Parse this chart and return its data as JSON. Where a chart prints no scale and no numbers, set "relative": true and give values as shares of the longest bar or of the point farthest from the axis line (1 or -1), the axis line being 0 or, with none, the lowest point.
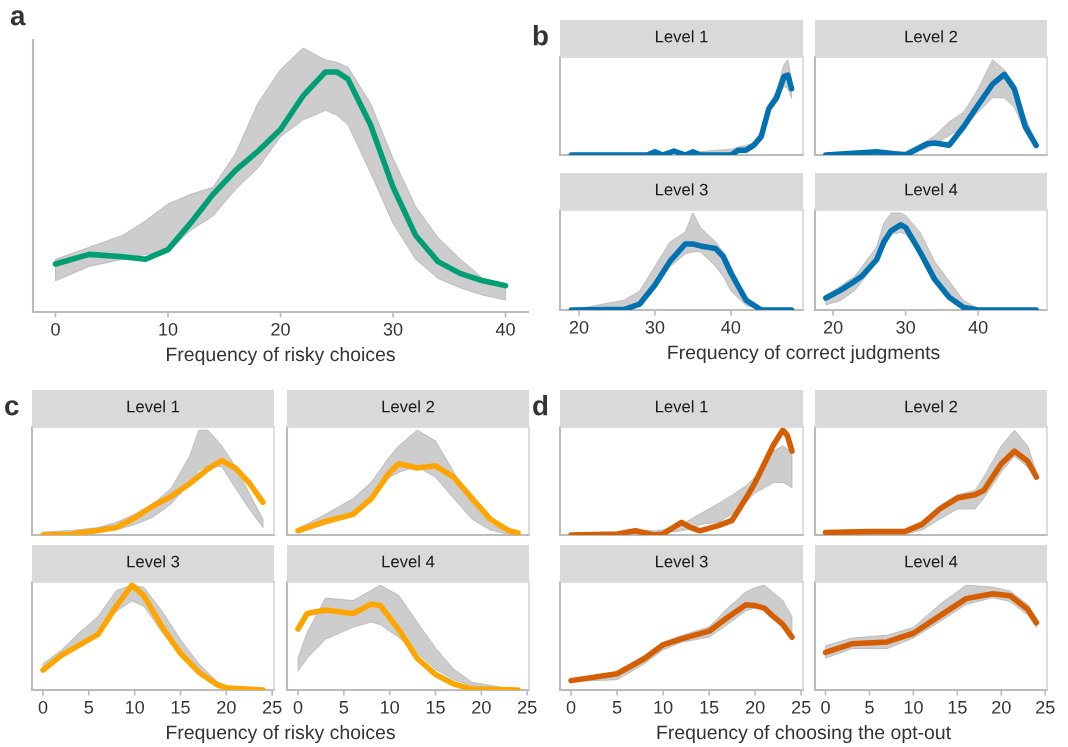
{
  "chart_data": [
    {
      "type": "line",
      "title": "a",
      "xlabel": "Frequency of risky choices",
      "relative": true,
      "tick_labels": "x",
      "xlim": [
        -2,
        42
      ],
      "xticks": [
        0,
        10,
        20,
        30,
        40
      ],
      "x": [
        0,
        3,
        6,
        8,
        10,
        12,
        14,
        16,
        18,
        20,
        22,
        24,
        25,
        26,
        28,
        30,
        32,
        34,
        36,
        38,
        40
      ],
      "series": [
        {
          "color": "#009e73",
          "values": [
            0.2,
            0.24,
            0.23,
            0.22,
            0.26,
            0.37,
            0.49,
            0.59,
            0.67,
            0.76,
            0.9,
            1,
            1,
            0.97,
            0.78,
            0.52,
            0.32,
            0.21,
            0.16,
            0.13,
            0.11
          ],
          "lower": [
            0.13,
            0.19,
            0.22,
            0.24,
            0.25,
            0.34,
            0.4,
            0.51,
            0.6,
            0.73,
            0.8,
            0.84,
            0.82,
            0.78,
            0.58,
            0.37,
            0.22,
            0.14,
            0.1,
            0.07,
            0.05
          ],
          "upper": [
            0.22,
            0.27,
            0.32,
            0.38,
            0.45,
            0.49,
            0.52,
            0.66,
            0.87,
            1.01,
            1.1,
            1.05,
            1.04,
            1.02,
            0.87,
            0.64,
            0.44,
            0.31,
            0.22,
            0.14,
            0.11
          ]
        }
      ]
    },
    {
      "type": "line",
      "title": "b",
      "subtitle": "Level 1",
      "relative": true,
      "tick_labels": false,
      "xlim": [
        17.5,
        49.5
      ],
      "x": [
        19,
        26,
        29,
        30,
        31,
        32.5,
        34,
        35,
        36,
        38,
        40,
        41,
        42,
        43,
        44,
        45,
        46,
        47,
        47.5,
        48
      ],
      "series": [
        {
          "color": "#0072b2",
          "values": [
            0,
            0,
            0,
            0.04,
            0,
            0.05,
            0,
            0.04,
            0,
            0,
            0,
            0.06,
            0.06,
            0.12,
            0.23,
            0.58,
            0.71,
            0.98,
            1,
            0.83
          ],
          "lower": [
            0,
            0,
            0,
            0,
            0,
            0,
            0,
            0,
            0,
            0,
            0,
            0.04,
            0.05,
            0.1,
            0.21,
            0.54,
            0.69,
            0.86,
            0.83,
            0.71
          ],
          "upper": [
            0,
            0,
            0,
            0.04,
            0.02,
            0.05,
            0.02,
            0.04,
            0.04,
            0.06,
            0.07,
            0.1,
            0.12,
            0.15,
            0.3,
            0.63,
            0.8,
            1.13,
            1.19,
            0.95
          ]
        }
      ]
    },
    {
      "type": "line",
      "subtitle": "Level 2",
      "relative": true,
      "tick_labels": false,
      "xlim": [
        17.5,
        49.5
      ],
      "x": [
        19,
        26,
        30,
        33,
        34,
        36,
        38,
        40,
        42,
        43.6,
        45,
        46.5,
        48
      ],
      "series": [
        {
          "color": "#0072b2",
          "values": [
            0,
            0.04,
            0,
            0.14,
            0.15,
            0.12,
            0.35,
            0.62,
            0.88,
            1,
            0.82,
            0.35,
            0.12
          ],
          "lower": [
            0,
            0,
            0,
            0.09,
            0.14,
            0.24,
            0.35,
            0.53,
            0.71,
            0.71,
            0.59,
            0.29,
            0.09
          ],
          "upper": [
            0,
            0.04,
            0.04,
            0.18,
            0.24,
            0.41,
            0.53,
            0.82,
            1.18,
            1.06,
            0.88,
            0.47,
            0.14
          ]
        }
      ]
    },
    {
      "type": "line",
      "subtitle": "Level 3",
      "xlabel": "Frequency of correct judgments",
      "relative": true,
      "tick_labels": "x",
      "xlim": [
        17.5,
        49.5
      ],
      "xticks": [
        20,
        30,
        40
      ],
      "x": [
        19,
        26,
        28,
        30,
        32,
        34,
        35,
        36,
        38,
        39,
        40,
        42,
        44,
        48
      ],
      "series": [
        {
          "color": "#0072b2",
          "values": [
            0,
            0.01,
            0.09,
            0.38,
            0.74,
            1,
            1,
            0.97,
            0.93,
            0.81,
            0.56,
            0.15,
            0,
            0
          ],
          "lower": [
            0,
            0,
            0.07,
            0.32,
            0.66,
            0.85,
            0.88,
            0.88,
            0.66,
            0.51,
            0.29,
            0.07,
            0,
            0
          ],
          "upper": [
            0,
            0.15,
            0.29,
            0.66,
            1.03,
            1.18,
            1.47,
            1.25,
            1.03,
            0.88,
            0.66,
            0.18,
            0.03,
            0
          ]
        }
      ]
    },
    {
      "type": "line",
      "subtitle": "Level 4",
      "relative": true,
      "tick_labels": "x",
      "xlim": [
        17.5,
        49.5
      ],
      "xticks": [
        20,
        30,
        40
      ],
      "x": [
        19,
        21,
        23,
        24,
        26,
        27,
        28,
        29.3,
        30,
        32,
        34,
        36,
        38,
        40,
        48
      ],
      "series": [
        {
          "color": "#0072b2",
          "values": [
            0.14,
            0.23,
            0.34,
            0.4,
            0.59,
            0.8,
            0.93,
            1,
            0.97,
            0.68,
            0.36,
            0.15,
            0.03,
            0,
            0
          ],
          "lower": [
            0.06,
            0.11,
            0.23,
            0.34,
            0.57,
            0.74,
            0.89,
            0.91,
            0.89,
            0.68,
            0.4,
            0.17,
            0.05,
            0,
            0
          ],
          "upper": [
            0.17,
            0.28,
            0.4,
            0.51,
            0.74,
            1.02,
            1.14,
            1.14,
            1.11,
            0.91,
            0.57,
            0.34,
            0.11,
            0.02,
            0
          ]
        }
      ]
    },
    {
      "type": "line",
      "title": "c",
      "subtitle": "Level 1",
      "relative": true,
      "tick_labels": false,
      "xlim": [
        -1.2,
        25.2
      ],
      "x": [
        0,
        3,
        6,
        8,
        10,
        12,
        14,
        16,
        17,
        18,
        19.5,
        21,
        22.5,
        24
      ],
      "series": [
        {
          "color": "#ffa500",
          "values": [
            0,
            0.01,
            0.06,
            0.1,
            0.23,
            0.39,
            0.52,
            0.69,
            0.79,
            0.89,
            1,
            0.9,
            0.7,
            0.44
          ],
          "lower": [
            0,
            0.01,
            0.04,
            0.07,
            0.14,
            0.24,
            0.42,
            0.7,
            0.87,
            0.93,
            0.92,
            0.63,
            0.35,
            0.1
          ],
          "upper": [
            0.04,
            0.06,
            0.1,
            0.17,
            0.28,
            0.42,
            0.63,
            1.06,
            1.41,
            1.41,
            1.2,
            0.92,
            0.56,
            0.21
          ]
        }
      ]
    },
    {
      "type": "line",
      "subtitle": "Level 2",
      "relative": true,
      "tick_labels": false,
      "xlim": [
        -1.2,
        25.2
      ],
      "x": [
        0,
        3,
        6,
        8,
        10,
        11,
        13,
        15,
        17,
        19,
        21,
        23,
        24
      ],
      "series": [
        {
          "color": "#ffa500",
          "values": [
            0.06,
            0.19,
            0.29,
            0.51,
            0.88,
            1,
            0.94,
            0.97,
            0.81,
            0.51,
            0.22,
            0.06,
            0.03
          ],
          "lower": [
            0.03,
            0.15,
            0.29,
            0.51,
            0.81,
            0.88,
            0.96,
            0.81,
            0.51,
            0.22,
            0.07,
            0.01,
            0
          ],
          "upper": [
            0.09,
            0.29,
            0.51,
            0.74,
            1.1,
            1.25,
            1.47,
            1.32,
            0.88,
            0.44,
            0.15,
            0.04,
            0.03
          ]
        }
      ]
    },
    {
      "type": "line",
      "subtitle": "Level 3",
      "xlabel": "Frequency of risky choices",
      "relative": true,
      "tick_labels": "x",
      "xlim": [
        -1.2,
        25.2
      ],
      "xticks": [
        0,
        5,
        10,
        15,
        20,
        25
      ],
      "x": [
        0,
        2,
        4,
        6,
        8,
        9.7,
        11,
        13,
        15,
        17,
        19,
        20,
        24
      ],
      "series": [
        {
          "color": "#ffa500",
          "values": [
            0.19,
            0.33,
            0.43,
            0.53,
            0.8,
            1.0,
            0.9,
            0.6,
            0.35,
            0.17,
            0.05,
            0.02,
            0
          ],
          "lower": [
            0.2,
            0.3,
            0.45,
            0.55,
            0.75,
            0.85,
            0.8,
            0.55,
            0.33,
            0.15,
            0.05,
            0.03,
            0
          ],
          "upper": [
            0.25,
            0.38,
            0.55,
            0.7,
            0.95,
            1.0,
            0.98,
            0.75,
            0.48,
            0.25,
            0.08,
            0.04,
            0.01
          ]
        }
      ]
    },
    {
      "type": "line",
      "subtitle": "Level 4",
      "relative": true,
      "tick_labels": "x",
      "xlim": [
        -1.2,
        25.2
      ],
      "xticks": [
        0,
        5,
        10,
        15,
        20,
        25
      ],
      "x": [
        0,
        1,
        3,
        6,
        8,
        9,
        11,
        13,
        15,
        17,
        19,
        24
      ],
      "series": [
        {
          "color": "#ffa500",
          "values": [
            0.71,
            0.89,
            0.93,
            0.89,
            1,
            0.98,
            0.7,
            0.37,
            0.18,
            0.07,
            0.01,
            0
          ],
          "lower": [
            0.22,
            0.37,
            0.59,
            0.73,
            0.79,
            0.76,
            0.61,
            0.43,
            0.24,
            0.12,
            0.05,
            0
          ],
          "upper": [
            0.37,
            0.67,
            1.07,
            1.04,
            1.16,
            1.22,
            1.1,
            0.79,
            0.49,
            0.24,
            0.09,
            0
          ]
        }
      ]
    },
    {
      "type": "line",
      "title": "d",
      "subtitle": "Level 1",
      "relative": true,
      "tick_labels": false,
      "xlim": [
        -1.2,
        25.2
      ],
      "x": [
        0,
        5,
        7,
        9,
        10,
        12,
        13,
        14,
        16,
        17.5,
        19,
        20,
        21,
        22,
        23,
        23.5,
        24
      ],
      "series": [
        {
          "color": "#d55e00",
          "values": [
            0,
            0.01,
            0.04,
            0,
            0.01,
            0.12,
            0.07,
            0.04,
            0.09,
            0.14,
            0.35,
            0.5,
            0.68,
            0.86,
            1.0,
            0.95,
            0.8
          ],
          "lower": [
            0,
            0,
            0.01,
            0.01,
            0.02,
            0.04,
            0.06,
            0.1,
            0.12,
            0.2,
            0.32,
            0.4,
            0.45,
            0.5,
            0.5,
            0.48,
            0.45
          ],
          "upper": [
            0.01,
            0.02,
            0.04,
            0.04,
            0.05,
            0.1,
            0.15,
            0.2,
            0.3,
            0.38,
            0.47,
            0.55,
            0.65,
            0.8,
            0.85,
            0.82,
            0.8
          ]
        }
      ]
    },
    {
      "type": "line",
      "subtitle": "Level 2",
      "relative": true,
      "tick_labels": false,
      "xlim": [
        -1.2,
        25.2
      ],
      "x": [
        0,
        5,
        9,
        11,
        13,
        15,
        17,
        18,
        20,
        21.5,
        23,
        24
      ],
      "series": [
        {
          "color": "#d55e00",
          "values": [
            0.03,
            0.04,
            0.04,
            0.13,
            0.31,
            0.44,
            0.48,
            0.53,
            0.85,
            1,
            0.88,
            0.69
          ],
          "lower": [
            0.01,
            0.01,
            0.01,
            0.06,
            0.19,
            0.31,
            0.31,
            0.44,
            0.75,
            0.94,
            0.81,
            0.69
          ],
          "upper": [
            0.04,
            0.05,
            0.05,
            0.15,
            0.35,
            0.48,
            0.53,
            0.69,
            1.06,
            1.25,
            1.06,
            0.75
          ]
        }
      ]
    },
    {
      "type": "line",
      "subtitle": "Level 3",
      "xlabel": "Frequency of choosing the opt-out",
      "relative": true,
      "tick_labels": "x",
      "xlim": [
        -1.2,
        25.2
      ],
      "xticks": [
        0,
        5,
        10,
        15,
        20,
        25
      ],
      "x": [
        0,
        5,
        8,
        10,
        12,
        15,
        17,
        19,
        20,
        21,
        22,
        23,
        24
      ],
      "series": [
        {
          "color": "#d55e00",
          "values": [
            0.11,
            0.19,
            0.37,
            0.53,
            0.6,
            0.69,
            0.85,
            1,
            0.99,
            0.96,
            0.86,
            0.77,
            0.62
          ],
          "lower": [
            0.1,
            0.12,
            0.31,
            0.47,
            0.56,
            0.62,
            0.77,
            0.93,
            0.96,
            0.99,
            0.86,
            0.77,
            0.68
          ],
          "upper": [
            0.12,
            0.21,
            0.41,
            0.56,
            0.64,
            0.74,
            0.96,
            1.15,
            1.2,
            1.23,
            1.14,
            1.05,
            0.86
          ]
        }
      ]
    },
    {
      "type": "line",
      "subtitle": "Level 4",
      "relative": true,
      "tick_labels": "x",
      "xlim": [
        -1.2,
        25.2
      ],
      "xticks": [
        0,
        5,
        10,
        15,
        20,
        25
      ],
      "x": [
        0,
        3,
        7,
        10,
        13,
        16,
        19,
        21,
        23,
        24
      ],
      "series": [
        {
          "color": "#d55e00",
          "values": [
            0.39,
            0.48,
            0.5,
            0.59,
            0.77,
            0.95,
            1,
            0.98,
            0.84,
            0.7
          ],
          "lower": [
            0.33,
            0.43,
            0.43,
            0.54,
            0.71,
            0.89,
            0.96,
            0.92,
            0.78,
            0.65
          ],
          "upper": [
            0.46,
            0.54,
            0.57,
            0.65,
            0.89,
            1.09,
            1.07,
            1.03,
            0.89,
            0.74
          ]
        }
      ]
    }
  ]
}
